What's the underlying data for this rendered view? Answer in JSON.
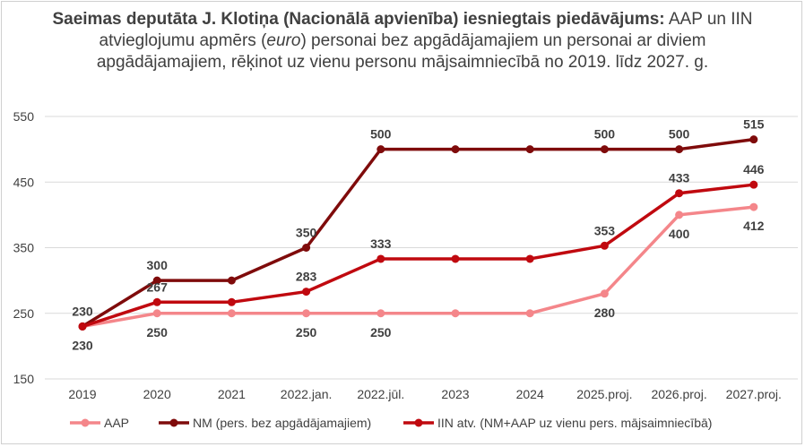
{
  "title": {
    "bold": "Saeimas deputāta J. Klotiņa (Nacionālā apvienība) iesniegtais piedāvājums:",
    "normal1": " AAP un IIN atvieglojumu apmērs (",
    "italic": "euro",
    "normal2": ") personai bez apgādājamajiem un personai ar diviem apgādājamajiem, rēķinot uz vienu personu mājsaimniecībā no 2019. līdz 2027. g."
  },
  "chart_data": {
    "type": "line",
    "categories": [
      "2019",
      "2020",
      "2021",
      "2022.jan.",
      "2022.jūl.",
      "2023",
      "2024",
      "2025.proj.",
      "2026.proj.",
      "2027.proj."
    ],
    "ylim": [
      150,
      550
    ],
    "yticks": [
      "150",
      "250",
      "350",
      "450",
      "550"
    ],
    "grid": true,
    "legend_position": "bottom",
    "series": [
      {
        "name": "AAP",
        "color": "#f4868a",
        "values": [
          230,
          250,
          250,
          250,
          250,
          250,
          250,
          280,
          400,
          412
        ],
        "labels": [
          "230",
          "250",
          "",
          "250",
          "250",
          "",
          "",
          "280",
          "400",
          "412"
        ],
        "label_pos": [
          "below",
          "below",
          "",
          "below",
          "below",
          "",
          "",
          "below",
          "below",
          "below"
        ]
      },
      {
        "name": "NM (pers. bez apgādājamajiem)",
        "color": "#7f0b0b",
        "values": [
          230,
          300,
          300,
          350,
          500,
          500,
          500,
          500,
          500,
          515
        ],
        "labels": [
          "",
          "300",
          "",
          "350",
          "500",
          "",
          "",
          "500",
          "500",
          "515"
        ],
        "label_pos": [
          "",
          "above",
          "",
          "above",
          "above",
          "",
          "",
          "above",
          "above",
          "above"
        ]
      },
      {
        "name": "IIN atv. (NM+AAP uz vienu pers. mājsaimniecībā)",
        "color": "#c0090f",
        "values": [
          230,
          267,
          267,
          283,
          333,
          333,
          333,
          353,
          433,
          446
        ],
        "labels": [
          "230",
          "267",
          "",
          "283",
          "333",
          "",
          "",
          "353",
          "433",
          "446"
        ],
        "label_pos": [
          "above",
          "above",
          "",
          "above",
          "above",
          "",
          "",
          "above",
          "above",
          "above"
        ]
      }
    ]
  }
}
